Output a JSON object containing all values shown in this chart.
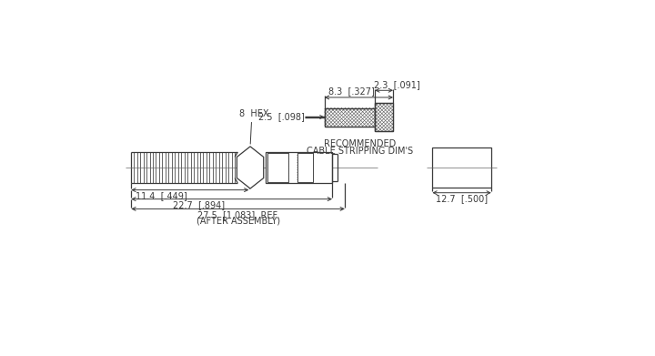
{
  "bg_color": "#ffffff",
  "line_color": "#3a3a3a",
  "title_line1": "RECOMMENDED",
  "title_line2": "CABLE STRIPPING DIM'S",
  "d1": "2.3  [.091]",
  "d2": "2.5  [.098]",
  "d3": "8.3  [.327]",
  "d4": "11.4  [.449]",
  "d5": "22.7  [.894]",
  "d6_line1": "27.5  [1.083]  REF.",
  "d6_line2": "(AFTER ASSEMBLY)",
  "d7": "12.7  [.500]",
  "hex_label": "8  HEX",
  "fs": 7.0
}
